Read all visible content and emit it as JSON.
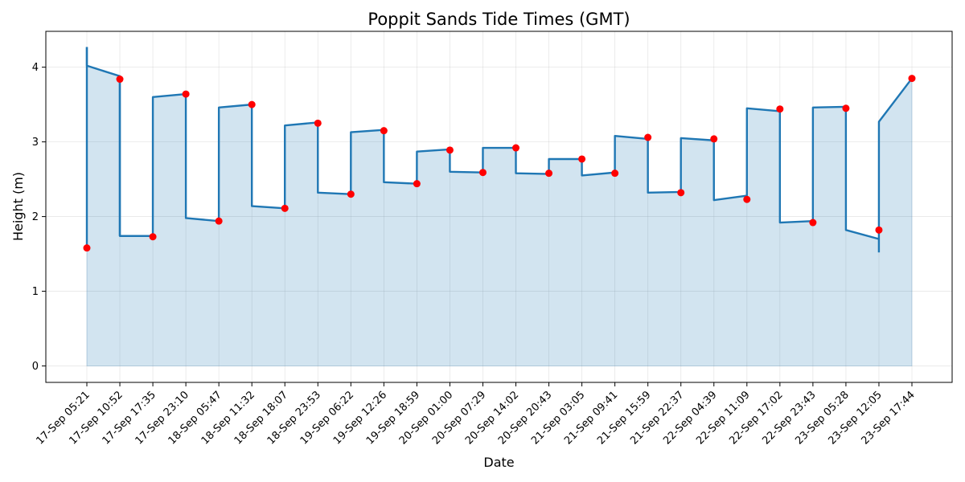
{
  "chart_data": {
    "type": "area",
    "title": "Poppit Sands Tide Times (GMT)",
    "xlabel": "Date",
    "ylabel": "Height (m)",
    "ylim": [
      -0.22,
      4.48
    ],
    "yticks": [
      0,
      1,
      2,
      3,
      4
    ],
    "grid": true,
    "colors": {
      "line": "#1f77b4",
      "fill": "#1f77b4",
      "points": "#ff0000"
    },
    "categories": [
      "17-Sep 05:21",
      "17-Sep 10:52",
      "17-Sep 17:35",
      "17-Sep 23:10",
      "18-Sep 05:47",
      "18-Sep 11:32",
      "18-Sep 18:07",
      "18-Sep 23:53",
      "19-Sep 06:22",
      "19-Sep 12:26",
      "19-Sep 18:59",
      "20-Sep 01:00",
      "20-Sep 07:29",
      "20-Sep 14:02",
      "20-Sep 20:43",
      "21-Sep 03:05",
      "21-Sep 09:41",
      "21-Sep 15:59",
      "21-Sep 22:37",
      "22-Sep 04:39",
      "22-Sep 11:09",
      "22-Sep 17:02",
      "22-Sep 23:43",
      "23-Sep 05:28",
      "23-Sep 12:05",
      "23-Sep 17:44"
    ],
    "tide_points": [
      1.58,
      3.84,
      1.73,
      3.64,
      1.94,
      3.5,
      2.11,
      3.25,
      2.3,
      3.15,
      2.44,
      2.89,
      2.59,
      2.92,
      2.58,
      2.77,
      2.58,
      3.06,
      2.32,
      3.04,
      2.23,
      3.44,
      1.92,
      3.45,
      1.82,
      3.85
    ],
    "series": [
      {
        "x": [
          0,
          0,
          0.999,
          1,
          1.999,
          2,
          2.999,
          3,
          3.999,
          4,
          4.999,
          5,
          5.999,
          6,
          6.999,
          7,
          7.999,
          8,
          8.999,
          9,
          9.999,
          10,
          10.999,
          11,
          11.999,
          12,
          12.999,
          13,
          13.999,
          14,
          14.999,
          15,
          15.999,
          16,
          16.999,
          17,
          17.999,
          18,
          18.999,
          19,
          19.999,
          20,
          20.999,
          21,
          21.999,
          22,
          22.999,
          23,
          23.999,
          24,
          25
        ],
        "y": [
          4.27,
          4.02,
          3.88,
          1.74,
          1.74,
          3.6,
          3.64,
          1.98,
          1.94,
          3.46,
          3.5,
          2.14,
          2.11,
          3.22,
          3.26,
          2.32,
          2.3,
          3.13,
          3.16,
          2.46,
          2.44,
          2.87,
          2.9,
          2.6,
          2.59,
          2.92,
          2.92,
          2.58,
          2.57,
          2.77,
          2.77,
          2.55,
          2.59,
          3.08,
          3.04,
          2.32,
          2.33,
          3.05,
          3.02,
          2.22,
          2.28,
          3.45,
          3.41,
          1.92,
          1.94,
          3.46,
          3.47,
          1.82,
          1.7,
          3.27,
          3.85
        ]
      }
    ],
    "extra_segments": [
      {
        "x": [
          0,
          0
        ],
        "y": [
          1.58,
          4.27
        ]
      },
      {
        "x": [
          0.999,
          0.999
        ],
        "y": [
          3.88,
          1.74
        ]
      },
      {
        "x": [
          23.999,
          23.999
        ],
        "y": [
          1.52,
          1.7
        ]
      }
    ]
  }
}
